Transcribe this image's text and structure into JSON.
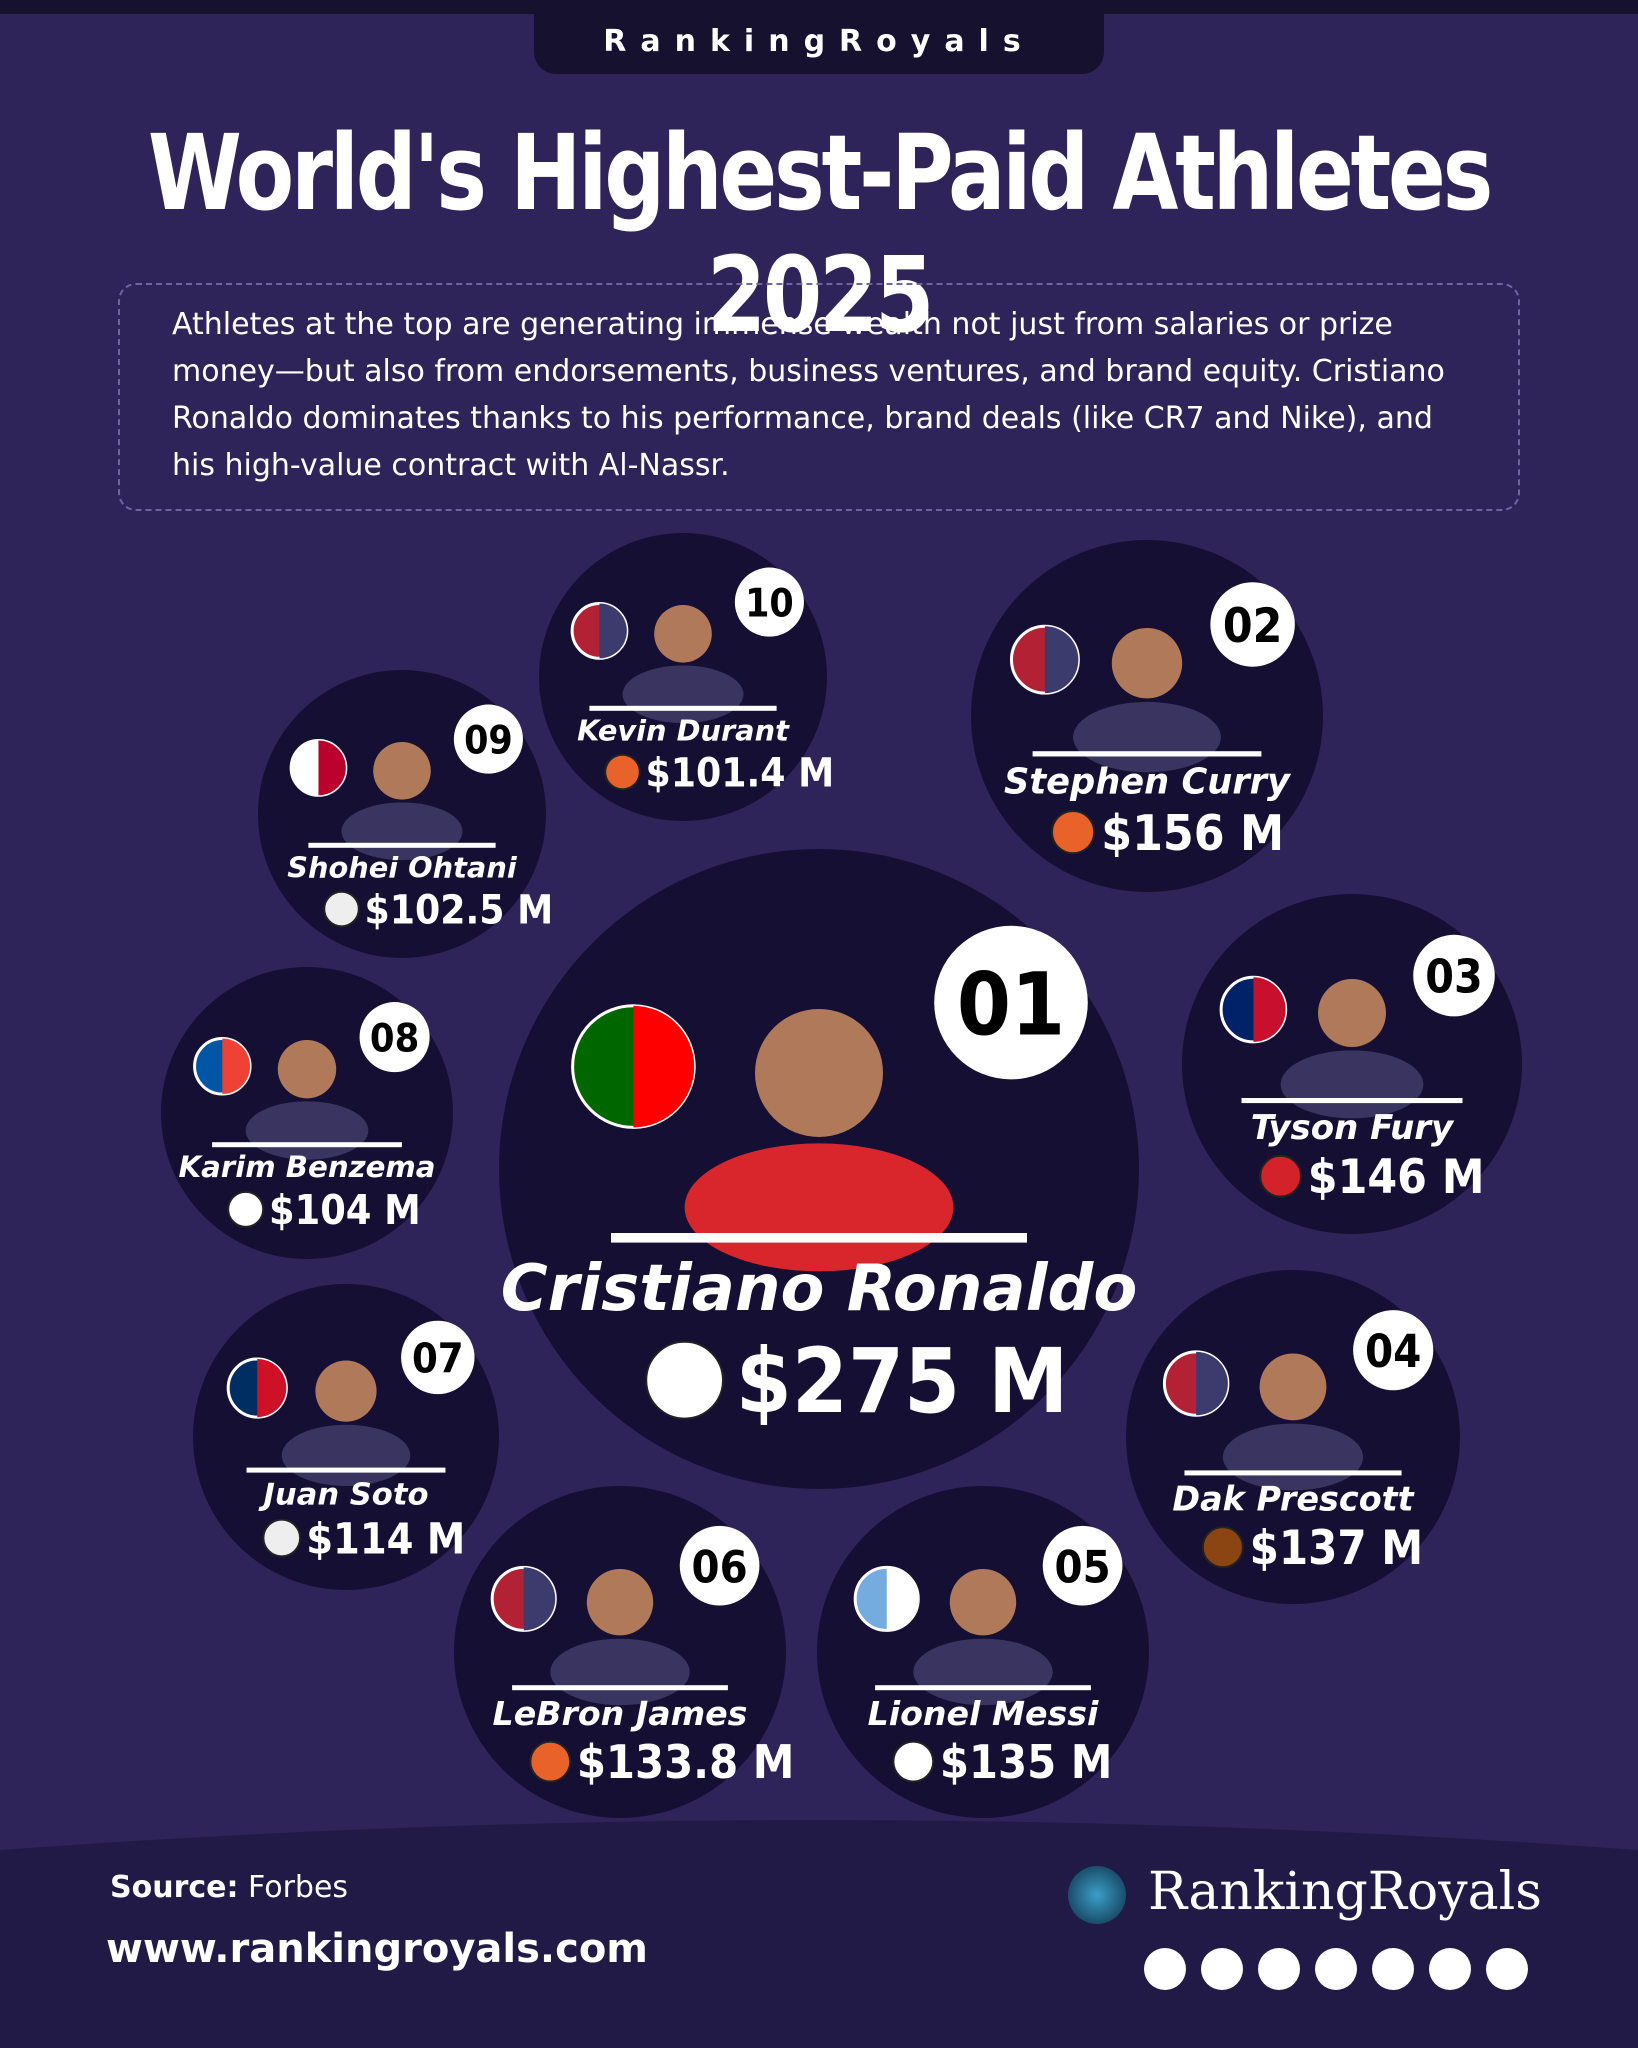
{
  "header": {
    "brand": "RankingRoyals",
    "title": "World's Highest-Paid Athletes 2025",
    "description": "Athletes at the top are generating immense wealth not just from salaries or prize money—but also from endorsements, business ventures, and brand equity. Cristiano Ronaldo dominates thanks to his performance, brand deals (like CR7 and Nike), and his high-value contract with Al-Nassr."
  },
  "athletes": [
    {
      "rank": "01",
      "name": "Cristiano Ronaldo",
      "earnings": "$275 M"
    },
    {
      "rank": "02",
      "name": "Stephen Curry",
      "earnings": "$156 M"
    },
    {
      "rank": "03",
      "name": "Tyson Fury",
      "earnings": "$146 M"
    },
    {
      "rank": "04",
      "name": "Dak Prescott",
      "earnings": "$137 M"
    },
    {
      "rank": "05",
      "name": "Lionel Messi",
      "earnings": "$135 M"
    },
    {
      "rank": "06",
      "name": "LeBron James",
      "earnings": "$133.8 M"
    },
    {
      "rank": "07",
      "name": "Juan Soto",
      "earnings": "$114 M"
    },
    {
      "rank": "08",
      "name": "Karim Benzema",
      "earnings": "$104 M"
    },
    {
      "rank": "09",
      "name": "Shohei Ohtani",
      "earnings": "$102.5 M"
    },
    {
      "rank": "10",
      "name": "Kevin Durant",
      "earnings": "$101.4 M"
    }
  ],
  "footer": {
    "source_label": "Source:",
    "source": " Forbes",
    "website": "www.rankingroyals.com",
    "brand": "RankingRoyals"
  }
}
